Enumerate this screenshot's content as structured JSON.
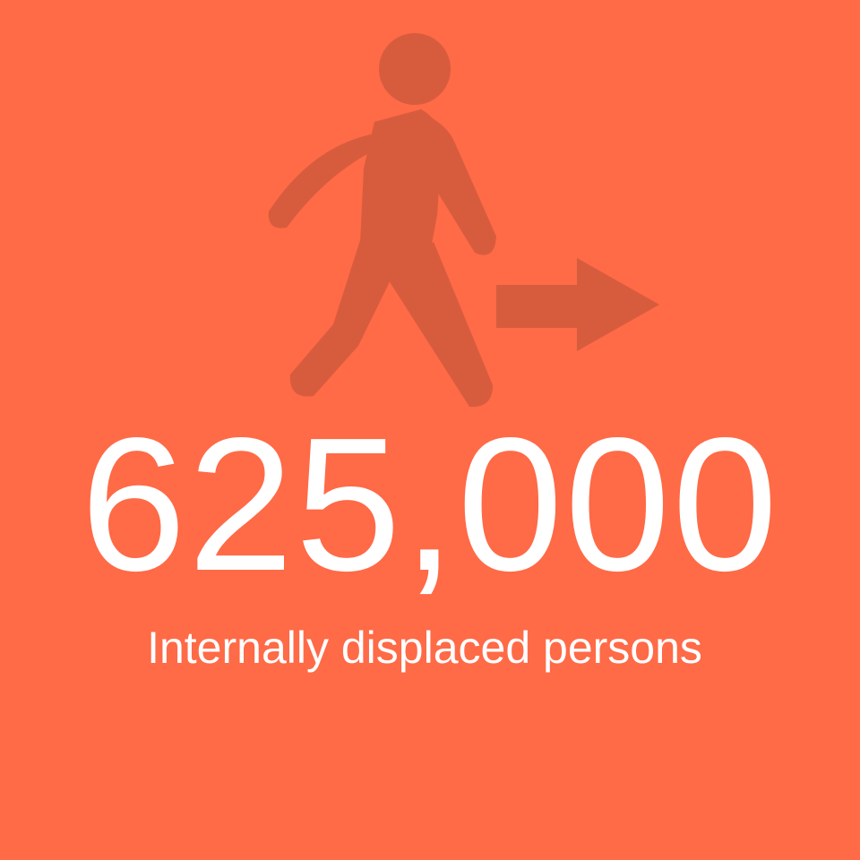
{
  "stat": {
    "value": "625,000",
    "label": "Internally displaced persons"
  },
  "icons": {
    "figure": "walking-person-icon",
    "direction": "right-arrow-icon"
  },
  "colors": {
    "background": "#FF6A47",
    "icon": "#D75C3E",
    "text": "#FFFFFF"
  }
}
